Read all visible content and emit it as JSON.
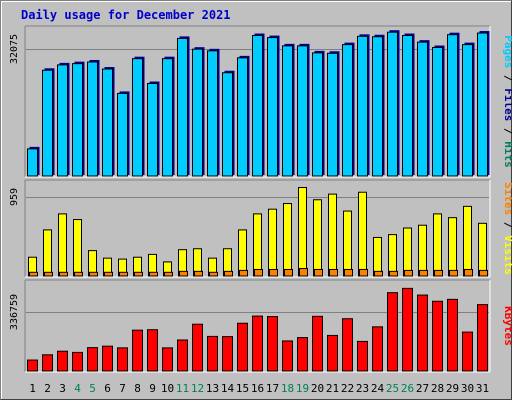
{
  "title": "Daily usage for December 2021",
  "colors": {
    "weekday_label": "#000000",
    "weekend_label": "#00805c",
    "hits": "#00ccff",
    "visits": "#ffff00",
    "sites": "#ff8000",
    "kbytes": "#ff0000",
    "files_label": "#000099",
    "pages_label": "#00ccff",
    "hits_label": "#00805c",
    "visits_label": "#ffff00",
    "sites_label": "#ff8000",
    "slash_label": "#000000"
  },
  "chart_data": [
    {
      "type": "bar",
      "panel": "hits",
      "y_tick_label": "32075",
      "ylim": [
        0,
        36500
      ],
      "right_label": [
        {
          "text": "Pages",
          "color_key": "pages_label"
        },
        {
          "text": " / ",
          "color_key": "slash_label"
        },
        {
          "text": "Files",
          "color_key": "files_label"
        },
        {
          "text": " / ",
          "color_key": "slash_label"
        },
        {
          "text": "Hits",
          "color_key": "hits_label"
        }
      ],
      "categories": [
        "1",
        "2",
        "3",
        "4",
        "5",
        "6",
        "7",
        "8",
        "9",
        "10",
        "11",
        "12",
        "13",
        "14",
        "15",
        "16",
        "17",
        "18",
        "19",
        "20",
        "21",
        "22",
        "23",
        "24",
        "25",
        "26",
        "27",
        "28",
        "29",
        "30",
        "31"
      ],
      "weekend": [
        false,
        false,
        false,
        true,
        true,
        false,
        false,
        false,
        false,
        false,
        true,
        true,
        false,
        false,
        false,
        false,
        false,
        true,
        true,
        false,
        false,
        false,
        false,
        false,
        true,
        true,
        false,
        false,
        false,
        false,
        false
      ],
      "series": [
        {
          "name": "Hits",
          "values": [
            6800,
            25800,
            27100,
            27400,
            27800,
            26100,
            20200,
            28600,
            22600,
            28600,
            33500,
            30900,
            30500,
            25200,
            28800,
            34200,
            33700,
            31700,
            31700,
            30000,
            29900,
            32000,
            34000,
            33900,
            35000,
            34200,
            32600,
            31300,
            34400,
            32000,
            34800
          ]
        }
      ]
    },
    {
      "type": "bar",
      "panel": "visits",
      "y_tick_label": "959",
      "ylim": [
        0,
        1030
      ],
      "right_label": [
        {
          "text": "Sites",
          "color_key": "sites_label"
        },
        {
          "text": " / ",
          "color_key": "slash_label"
        },
        {
          "text": "Visits",
          "color_key": "visits_label"
        }
      ],
      "categories": [
        "1",
        "2",
        "3",
        "4",
        "5",
        "6",
        "7",
        "8",
        "9",
        "10",
        "11",
        "12",
        "13",
        "14",
        "15",
        "16",
        "17",
        "18",
        "19",
        "20",
        "21",
        "22",
        "23",
        "24",
        "25",
        "26",
        "27",
        "28",
        "29",
        "30",
        "31"
      ],
      "series": [
        {
          "name": "Visits",
          "values": [
            210,
            500,
            670,
            610,
            280,
            200,
            190,
            210,
            240,
            160,
            290,
            300,
            200,
            300,
            500,
            670,
            720,
            780,
            950,
            820,
            880,
            700,
            900,
            420,
            450,
            520,
            550,
            670,
            630,
            750,
            570
          ]
        },
        {
          "name": "Sites",
          "values": [
            50,
            50,
            50,
            50,
            50,
            50,
            50,
            50,
            50,
            50,
            60,
            60,
            50,
            60,
            70,
            80,
            80,
            80,
            90,
            80,
            80,
            80,
            80,
            60,
            60,
            70,
            70,
            70,
            70,
            80,
            70
          ]
        }
      ]
    },
    {
      "type": "bar",
      "panel": "kbytes",
      "y_tick_label": "336759",
      "ylim": [
        0,
        385000
      ],
      "right_label": [
        {
          "text": "KBytes",
          "color_key": "kbytes"
        }
      ],
      "categories": [
        "1",
        "2",
        "3",
        "4",
        "5",
        "6",
        "7",
        "8",
        "9",
        "10",
        "11",
        "12",
        "13",
        "14",
        "15",
        "16",
        "17",
        "18",
        "19",
        "20",
        "21",
        "22",
        "23",
        "24",
        "25",
        "26",
        "27",
        "28",
        "29",
        "30",
        "31"
      ],
      "series": [
        {
          "name": "KBytes",
          "values": [
            50000,
            72000,
            87000,
            82000,
            102000,
            108000,
            101000,
            175000,
            177000,
            101000,
            134000,
            200000,
            149000,
            148000,
            204000,
            234000,
            232000,
            130000,
            144000,
            233000,
            153000,
            223000,
            128000,
            189000,
            332000,
            350000,
            322000,
            296000,
            304000,
            167000,
            282000
          ]
        }
      ]
    }
  ]
}
